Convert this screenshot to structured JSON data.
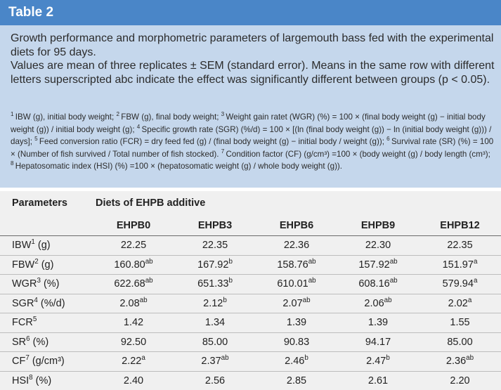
{
  "title": "Table 2",
  "caption": {
    "line1": "Growth performance and morphometric parameters of largemouth bass fed with the experimental diets for 95 days.",
    "line2": "Values are mean of three replicates ± SEM (standard error). Means in the same row with different letters superscripted abc indicate the effect was significantly different between groups (p < 0.05).",
    "footnotes": [
      {
        "n": "1",
        "text": "IBW (g), initial body weight; "
      },
      {
        "n": "2",
        "text": "FBW (g), final body weight; "
      },
      {
        "n": "3",
        "text": "Weight gain ratet (WGR) (%) = 100 × (final body weight (g) − initial body weight (g)) / initial body weight (g); "
      },
      {
        "n": "4",
        "text": "Specific growth rate (SGR) (%/d) = 100 × [(ln (final body weight (g)) − ln (initial body weight (g))) / days]; "
      },
      {
        "n": "5",
        "text": "Feed conversion ratio (FCR) = dry feed fed (g) / (final body weight (g) − initial body / weight (g)); "
      },
      {
        "n": "6",
        "text": "Survival rate (SR) (%) = 100 × (Number of fish survived / Total number of fish stocked). "
      },
      {
        "n": "7",
        "text": "Condition factor (CF) (g/cm³) =100 × (body weight (g) / body length (cm³); "
      },
      {
        "n": "8",
        "text": "Hepatosomatic index (HSI) (%) =100 × (hepatosomatic weight (g) / whole body weight (g))."
      }
    ]
  },
  "table": {
    "params_header": "Parameters",
    "group_header": "Diets of EHPB additive",
    "columns": [
      "EHPB0",
      "EHPB3",
      "EHPB6",
      "EHPB9",
      "EHPB12"
    ],
    "rows": [
      {
        "label": "IBW",
        "sup": "1",
        "unit": " (g)",
        "cells": [
          {
            "v": "22.25",
            "s": ""
          },
          {
            "v": "22.35",
            "s": ""
          },
          {
            "v": "22.36",
            "s": ""
          },
          {
            "v": "22.30",
            "s": ""
          },
          {
            "v": "22.35",
            "s": ""
          }
        ]
      },
      {
        "label": "FBW",
        "sup": "2",
        "unit": " (g)",
        "cells": [
          {
            "v": "160.80",
            "s": "ab"
          },
          {
            "v": "167.92",
            "s": "b"
          },
          {
            "v": "158.76",
            "s": "ab"
          },
          {
            "v": "157.92",
            "s": "ab"
          },
          {
            "v": "151.97",
            "s": "a"
          }
        ]
      },
      {
        "label": "WGR",
        "sup": "3",
        "unit": " (%)",
        "cells": [
          {
            "v": "622.68",
            "s": "ab"
          },
          {
            "v": "651.33",
            "s": "b"
          },
          {
            "v": "610.01",
            "s": "ab"
          },
          {
            "v": "608.16",
            "s": "ab"
          },
          {
            "v": "579.94",
            "s": "a"
          }
        ]
      },
      {
        "label": "SGR",
        "sup": "4",
        "unit": " (%/d)",
        "cells": [
          {
            "v": "2.08",
            "s": "ab"
          },
          {
            "v": "2.12",
            "s": "b"
          },
          {
            "v": "2.07",
            "s": "ab"
          },
          {
            "v": "2.06",
            "s": "ab"
          },
          {
            "v": "2.02",
            "s": "a"
          }
        ]
      },
      {
        "label": "FCR",
        "sup": "5",
        "unit": "",
        "cells": [
          {
            "v": "1.42",
            "s": ""
          },
          {
            "v": "1.34",
            "s": ""
          },
          {
            "v": "1.39",
            "s": ""
          },
          {
            "v": "1.39",
            "s": ""
          },
          {
            "v": "1.55",
            "s": ""
          }
        ]
      },
      {
        "label": "SR",
        "sup": "6",
        "unit": " (%)",
        "cells": [
          {
            "v": "92.50",
            "s": ""
          },
          {
            "v": "85.00",
            "s": ""
          },
          {
            "v": "90.83",
            "s": ""
          },
          {
            "v": "94.17",
            "s": ""
          },
          {
            "v": "85.00",
            "s": ""
          }
        ]
      },
      {
        "label": "CF",
        "sup": "7",
        "unit": " (g/cm³)",
        "cells": [
          {
            "v": "2.22",
            "s": "a"
          },
          {
            "v": "2.37",
            "s": "ab"
          },
          {
            "v": "2.46",
            "s": "b"
          },
          {
            "v": "2.47",
            "s": "b"
          },
          {
            "v": "2.36",
            "s": "ab"
          }
        ]
      },
      {
        "label": "HSI",
        "sup": "8",
        "unit": " (%)",
        "cells": [
          {
            "v": "2.40",
            "s": ""
          },
          {
            "v": "2.56",
            "s": ""
          },
          {
            "v": "2.85",
            "s": ""
          },
          {
            "v": "2.61",
            "s": ""
          },
          {
            "v": "2.20",
            "s": ""
          }
        ]
      }
    ]
  },
  "colors": {
    "title_bar": "#4a86c8",
    "caption_bg": "#c5d7ec",
    "table_bg": "#f0f0f0"
  }
}
